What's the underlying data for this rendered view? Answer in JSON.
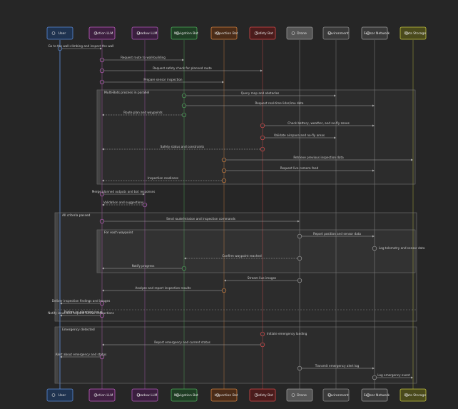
{
  "participants": [
    {
      "label": "User"
    },
    {
      "label": "Action LLM"
    },
    {
      "label": "Shadow LLM"
    },
    {
      "label": "Navigation Bot"
    },
    {
      "label": "Inspection Bot"
    },
    {
      "label": "Safety Bot"
    },
    {
      "label": "Drone"
    },
    {
      "label": "Environment"
    },
    {
      "label": "Sensor Network"
    },
    {
      "label": "Data Storage"
    }
  ],
  "frames": [
    {
      "label": "Multi-Bots process in parallel"
    },
    {
      "label": "All criteria passed"
    },
    {
      "label": "For each waypoint"
    },
    {
      "label": "Emergency detected"
    }
  ],
  "separators": [
    {
      "label": "Before re-planning issue"
    }
  ],
  "messages": [
    {
      "text": "Go to the wall-climbing and inspect the wall"
    },
    {
      "text": "Request route to wall-building"
    },
    {
      "text": "Request safety check for planned route"
    },
    {
      "text": "Prepare sensor inspection"
    },
    {
      "text": "Query map and obstacles"
    },
    {
      "text": "Request real-time lidar/imu data"
    },
    {
      "text": "Route plan and waypoints"
    },
    {
      "text": "Check battery, weather, and no-fly zones"
    },
    {
      "text": "Validate airspace and no-fly areas"
    },
    {
      "text": "Safety status and constraints"
    },
    {
      "text": "Retrieve previous inspection data"
    },
    {
      "text": "Request live camera feed"
    },
    {
      "text": "Inspection readiness"
    },
    {
      "text": "Merge planned outputs and bot responses"
    },
    {
      "text": "Validation and suggestions"
    },
    {
      "text": "Send route/mission and inspection commands"
    },
    {
      "text": "Report position and sensor data"
    },
    {
      "text": "Log telemetry and sensor data"
    },
    {
      "text": "Confirm waypoint reached"
    },
    {
      "text": "Notify progress"
    },
    {
      "text": "Stream live images"
    },
    {
      "text": "Analyze and report inspection results"
    },
    {
      "text": "Deliver inspection findings and images"
    },
    {
      "text": "Notify issue and request further instructions"
    },
    {
      "text": "Initiate emergency landing"
    },
    {
      "text": "Report emergency and current status"
    },
    {
      "text": "Alert about emergency and status"
    },
    {
      "text": "Transmit emergency alert log"
    },
    {
      "text": "Log emergency event"
    }
  ]
}
